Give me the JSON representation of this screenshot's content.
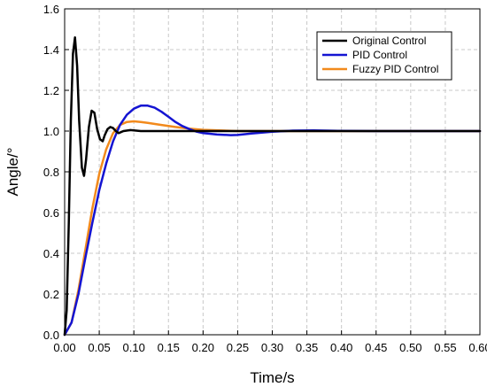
{
  "chart_data": {
    "type": "line",
    "title": "",
    "xlabel": "Time/s",
    "ylabel": "Angle/°",
    "xlim": [
      0,
      0.6
    ],
    "ylim": [
      0,
      1.6
    ],
    "x_ticks": [
      "0.00",
      "0.05",
      "0.10",
      "0.15",
      "0.20",
      "0.25",
      "0.30",
      "0.35",
      "0.40",
      "0.45",
      "0.50",
      "0.55",
      "0.60"
    ],
    "y_ticks": [
      "0.0",
      "0.2",
      "0.4",
      "0.6",
      "0.8",
      "1.0",
      "1.2",
      "1.4",
      "1.6"
    ],
    "grid": true,
    "legend_position": "top-right",
    "series": [
      {
        "name": "Original Control",
        "color": "#000000",
        "x": [
          0,
          0.003,
          0.006,
          0.009,
          0.012,
          0.015,
          0.018,
          0.021,
          0.025,
          0.028,
          0.031,
          0.035,
          0.039,
          0.043,
          0.047,
          0.051,
          0.055,
          0.058,
          0.062,
          0.066,
          0.07,
          0.074,
          0.078,
          0.085,
          0.095,
          0.11,
          0.13,
          0.16,
          0.2,
          0.3,
          0.4,
          0.6
        ],
        "y": [
          0,
          0.12,
          0.55,
          1.05,
          1.38,
          1.46,
          1.32,
          1.05,
          0.82,
          0.78,
          0.86,
          1.02,
          1.1,
          1.09,
          1.01,
          0.96,
          0.95,
          0.98,
          1.01,
          1.02,
          1.015,
          1.0,
          0.99,
          1.0,
          1.005,
          1.0,
          1.0,
          1.0,
          1.0,
          1.0,
          1.0,
          1.0
        ]
      },
      {
        "name": "PID Control",
        "color": "#1414d2",
        "x": [
          0,
          0.01,
          0.02,
          0.03,
          0.04,
          0.05,
          0.06,
          0.07,
          0.08,
          0.09,
          0.1,
          0.11,
          0.12,
          0.13,
          0.14,
          0.15,
          0.16,
          0.17,
          0.18,
          0.19,
          0.2,
          0.22,
          0.24,
          0.25,
          0.27,
          0.3,
          0.33,
          0.36,
          0.4,
          0.45,
          0.6
        ],
        "y": [
          0,
          0.06,
          0.2,
          0.38,
          0.55,
          0.71,
          0.84,
          0.95,
          1.03,
          1.08,
          1.11,
          1.125,
          1.125,
          1.115,
          1.095,
          1.07,
          1.045,
          1.025,
          1.01,
          0.998,
          0.99,
          0.983,
          0.98,
          0.981,
          0.988,
          0.997,
          1.002,
          1.003,
          1.001,
          1.0,
          1.0
        ]
      },
      {
        "name": "Fuzzy PID Control",
        "color": "#f28a1c",
        "x": [
          0,
          0.01,
          0.02,
          0.03,
          0.04,
          0.05,
          0.06,
          0.07,
          0.08,
          0.09,
          0.1,
          0.11,
          0.12,
          0.14,
          0.16,
          0.18,
          0.2,
          0.25,
          0.3,
          0.4,
          0.6
        ],
        "y": [
          0,
          0.06,
          0.22,
          0.42,
          0.62,
          0.79,
          0.91,
          0.99,
          1.03,
          1.045,
          1.048,
          1.045,
          1.04,
          1.03,
          1.02,
          1.012,
          1.006,
          1.0,
          1.0,
          1.0,
          1.0
        ]
      }
    ]
  }
}
